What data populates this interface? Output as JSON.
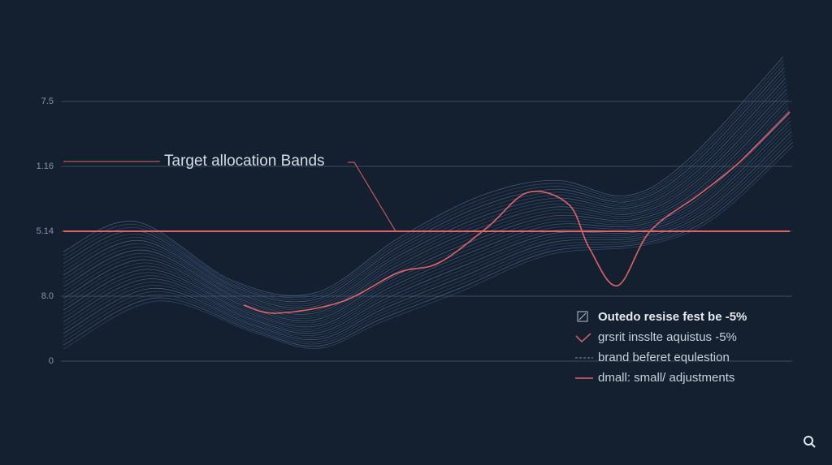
{
  "axis_labels": [
    "7.5",
    "1.16",
    "5.14",
    "8.0",
    "0"
  ],
  "annotation": "Target allocation  Bands",
  "legend": [
    "Outedo resise fest be -5%",
    "grsrit insslte aquistus -5%",
    "brand beferet equlestion",
    "dmall: small/ adjustments"
  ]
}
